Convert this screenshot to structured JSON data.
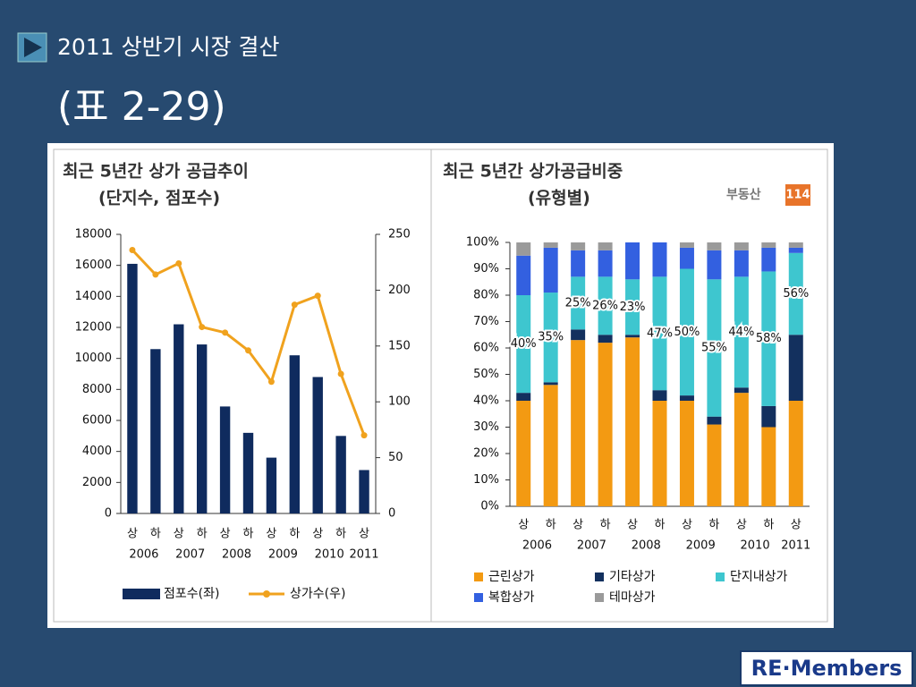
{
  "slide": {
    "title": "2011 상반기 시장 결산",
    "subtitle": "(표 2-29)",
    "logo": "RE·Members"
  },
  "chart_data": [
    {
      "type": "combo",
      "title": "최근 5년간 상가 공급추이",
      "subtitle": "(단지수, 점포수)",
      "categories": [
        "상",
        "하",
        "상",
        "하",
        "상",
        "하",
        "상",
        "하",
        "상",
        "하",
        "상"
      ],
      "years": [
        "2006",
        "2007",
        "2008",
        "2009",
        "2010",
        "2011"
      ],
      "series": [
        {
          "name": "점포수(좌)",
          "type": "bar",
          "color": "#0f2b5e",
          "values": [
            16100,
            10600,
            12200,
            10900,
            6900,
            5200,
            3600,
            10200,
            8800,
            5000,
            2800
          ]
        },
        {
          "name": "상가수(우)",
          "type": "line",
          "axis": "y2",
          "color": "#f0a21e",
          "values": [
            236,
            214,
            224,
            167,
            162,
            146,
            118,
            187,
            195,
            125,
            70
          ]
        }
      ],
      "ylim": [
        0,
        18000
      ],
      "yticks": [
        0,
        2000,
        4000,
        6000,
        8000,
        10000,
        12000,
        14000,
        16000,
        18000
      ],
      "y2lim": [
        0,
        250
      ],
      "y2ticks": [
        0,
        50,
        100,
        150,
        200,
        250
      ]
    },
    {
      "type": "stacked_bar",
      "title": "최근 5년간 상가공급비중",
      "subtitle": "(유형별)",
      "source_logo": {
        "text": "부동산",
        "badge": "114"
      },
      "categories": [
        "상",
        "하",
        "상",
        "하",
        "상",
        "하",
        "상",
        "하",
        "상",
        "하",
        "상"
      ],
      "years": [
        "2006",
        "2007",
        "2008",
        "2009",
        "2010",
        "2011"
      ],
      "series": [
        {
          "name": "근린상가",
          "color": "#f39a12",
          "values": [
            40,
            46,
            63,
            62,
            64,
            40,
            40,
            31,
            43,
            30,
            40
          ]
        },
        {
          "name": "기타상가",
          "color": "#13305e",
          "values": [
            3,
            1,
            4,
            3,
            1,
            4,
            2,
            3,
            2,
            8,
            25
          ]
        },
        {
          "name": "단지내상가",
          "color": "#3ec6cf",
          "values": [
            37,
            34,
            20,
            22,
            21,
            43,
            48,
            52,
            42,
            51,
            31
          ]
        },
        {
          "name": "복합상가",
          "color": "#3360e0",
          "values": [
            15,
            17,
            10,
            10,
            14,
            13,
            8,
            11,
            10,
            9,
            2
          ]
        },
        {
          "name": "테마상가",
          "color": "#9a9a9a",
          "values": [
            5,
            2,
            3,
            3,
            0,
            0,
            2,
            3,
            3,
            2,
            2
          ]
        }
      ],
      "annotations": [
        "40%",
        "35%",
        "25%",
        "26%",
        "23%",
        "47%",
        "50%",
        "55%",
        "44%",
        "58%",
        "56%"
      ],
      "ylim": [
        0,
        100
      ],
      "yticks": [
        {
          "value": 0,
          "label": "0%"
        },
        {
          "value": 10,
          "label": "10%"
        },
        {
          "value": 20,
          "label": "20%"
        },
        {
          "value": 30,
          "label": "30%"
        },
        {
          "value": 40,
          "label": "40%"
        },
        {
          "value": 50,
          "label": "50%"
        },
        {
          "value": 60,
          "label": "60%"
        },
        {
          "value": 70,
          "label": "70%"
        },
        {
          "value": 80,
          "label": "80%"
        },
        {
          "value": 90,
          "label": "90%"
        },
        {
          "value": 100,
          "label": "100%"
        }
      ]
    }
  ]
}
